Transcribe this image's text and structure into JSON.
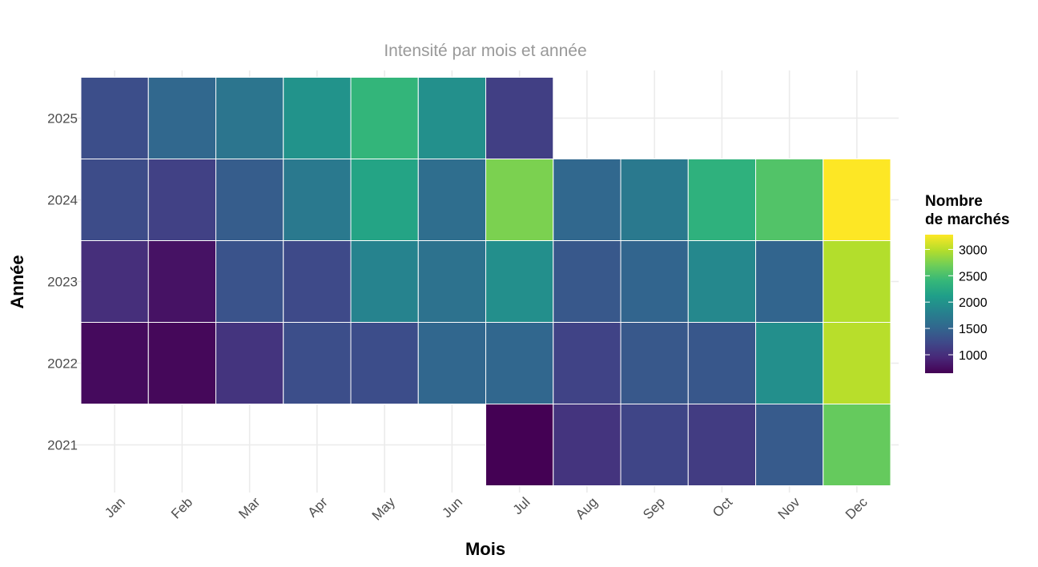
{
  "chart_data": {
    "type": "heatmap",
    "title": "Intensité par mois et année",
    "xlabel": "Mois",
    "ylabel": "Année",
    "x_categories": [
      "Jan",
      "Feb",
      "Mar",
      "Apr",
      "May",
      "Jun",
      "Jul",
      "Aug",
      "Sep",
      "Oct",
      "Nov",
      "Dec"
    ],
    "y_categories": [
      "2021",
      "2022",
      "2023",
      "2024",
      "2025"
    ],
    "cells": [
      {
        "year": "2021",
        "month": "Jul",
        "value": 650
      },
      {
        "year": "2021",
        "month": "Aug",
        "value": 1050
      },
      {
        "year": "2021",
        "month": "Sep",
        "value": 1200
      },
      {
        "year": "2021",
        "month": "Oct",
        "value": 1120
      },
      {
        "year": "2021",
        "month": "Nov",
        "value": 1400
      },
      {
        "year": "2021",
        "month": "Dec",
        "value": 2650
      },
      {
        "year": "2022",
        "month": "Jan",
        "value": 720
      },
      {
        "year": "2022",
        "month": "Feb",
        "value": 700
      },
      {
        "year": "2022",
        "month": "Mar",
        "value": 1050
      },
      {
        "year": "2022",
        "month": "Apr",
        "value": 1280
      },
      {
        "year": "2022",
        "month": "May",
        "value": 1270
      },
      {
        "year": "2022",
        "month": "Jun",
        "value": 1520
      },
      {
        "year": "2022",
        "month": "Jul",
        "value": 1520
      },
      {
        "year": "2022",
        "month": "Aug",
        "value": 1180
      },
      {
        "year": "2022",
        "month": "Sep",
        "value": 1380
      },
      {
        "year": "2022",
        "month": "Oct",
        "value": 1370
      },
      {
        "year": "2022",
        "month": "Nov",
        "value": 1950
      },
      {
        "year": "2022",
        "month": "Dec",
        "value": 3000
      },
      {
        "year": "2023",
        "month": "Jan",
        "value": 1000
      },
      {
        "year": "2023",
        "month": "Feb",
        "value": 780
      },
      {
        "year": "2023",
        "month": "Mar",
        "value": 1330
      },
      {
        "year": "2023",
        "month": "Apr",
        "value": 1240
      },
      {
        "year": "2023",
        "month": "May",
        "value": 1830
      },
      {
        "year": "2023",
        "month": "Jun",
        "value": 1640
      },
      {
        "year": "2023",
        "month": "Jul",
        "value": 1950
      },
      {
        "year": "2023",
        "month": "Aug",
        "value": 1380
      },
      {
        "year": "2023",
        "month": "Sep",
        "value": 1500
      },
      {
        "year": "2023",
        "month": "Oct",
        "value": 1880
      },
      {
        "year": "2023",
        "month": "Nov",
        "value": 1500
      },
      {
        "year": "2023",
        "month": "Dec",
        "value": 2980
      },
      {
        "year": "2024",
        "month": "Jan",
        "value": 1260
      },
      {
        "year": "2024",
        "month": "Feb",
        "value": 1160
      },
      {
        "year": "2024",
        "month": "Mar",
        "value": 1420
      },
      {
        "year": "2024",
        "month": "Apr",
        "value": 1720
      },
      {
        "year": "2024",
        "month": "May",
        "value": 2180
      },
      {
        "year": "2024",
        "month": "Jun",
        "value": 1590
      },
      {
        "year": "2024",
        "month": "Jul",
        "value": 2750
      },
      {
        "year": "2024",
        "month": "Aug",
        "value": 1530
      },
      {
        "year": "2024",
        "month": "Sep",
        "value": 1720
      },
      {
        "year": "2024",
        "month": "Oct",
        "value": 2330
      },
      {
        "year": "2024",
        "month": "Nov",
        "value": 2550
      },
      {
        "year": "2024",
        "month": "Dec",
        "value": 3280
      },
      {
        "year": "2025",
        "month": "Jan",
        "value": 1280
      },
      {
        "year": "2025",
        "month": "Feb",
        "value": 1530
      },
      {
        "year": "2025",
        "month": "Mar",
        "value": 1670
      },
      {
        "year": "2025",
        "month": "Apr",
        "value": 2000
      },
      {
        "year": "2025",
        "month": "May",
        "value": 2380
      },
      {
        "year": "2025",
        "month": "Jun",
        "value": 1960
      },
      {
        "year": "2025",
        "month": "Jul",
        "value": 1150
      }
    ],
    "color_scale": {
      "name": "viridis",
      "min": 650,
      "max": 3280,
      "stops": [
        "#440154",
        "#482878",
        "#3e4989",
        "#31688e",
        "#26828e",
        "#1f9e89",
        "#35b779",
        "#6ece58",
        "#b5de2b",
        "#fde725"
      ]
    },
    "legend": {
      "title_lines": [
        "Nombre",
        "de marchés"
      ],
      "ticks": [
        1000,
        1500,
        2000,
        2500,
        3000
      ],
      "placement": "right"
    },
    "grid": true
  }
}
